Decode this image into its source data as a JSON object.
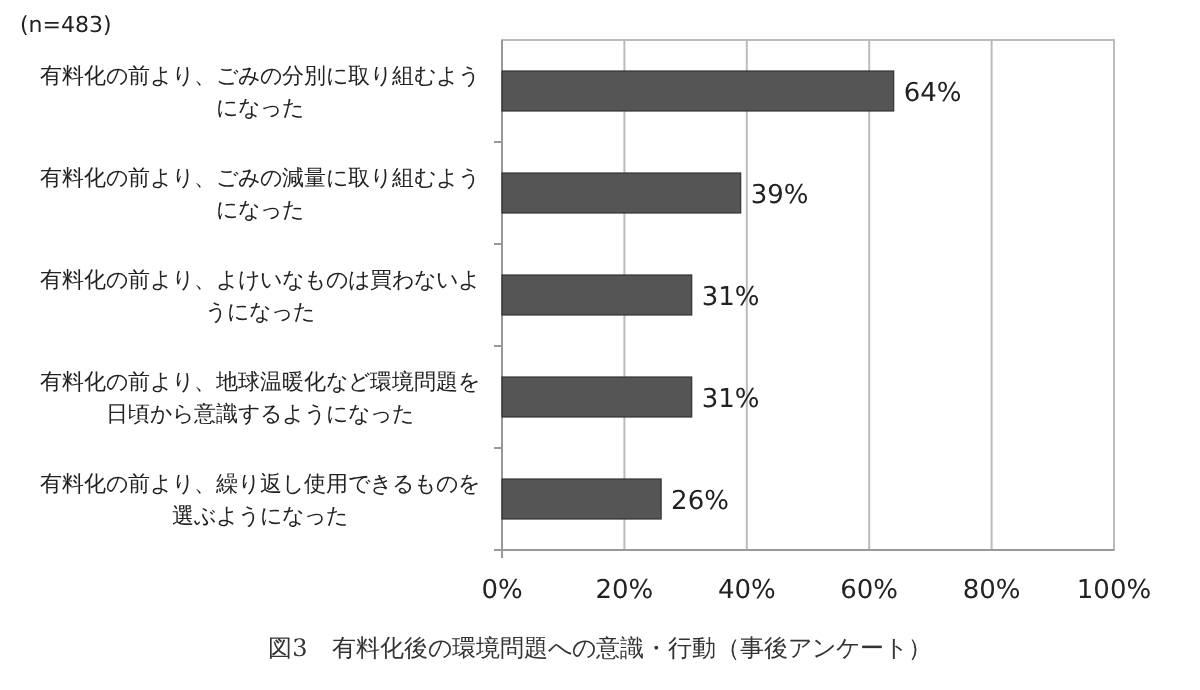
{
  "chart_data": {
    "type": "bar",
    "orientation": "horizontal",
    "title": "図3　有料化後の環境問題への意識・行動（事後アンケート）",
    "annotations": [
      "(n=483)"
    ],
    "categories": [
      "有料化の前より、ごみの分別に取り組むようになった",
      "有料化の前より、ごみの減量に取り組むようになった",
      "有料化の前より、よけいなものは買わないようになった",
      "有料化の前より、地球温暖化など環境問題を日頃から意識するようになった",
      "有料化の前より、繰り返し使用できるものを選ぶようになった"
    ],
    "values": [
      64,
      39,
      31,
      31,
      26
    ],
    "value_labels": [
      "64%",
      "39%",
      "31%",
      "31%",
      "26%"
    ],
    "color": "#555555",
    "xlim": [
      0,
      100
    ],
    "xticks": [
      {
        "value": 0,
        "label": "0%"
      },
      {
        "value": 20,
        "label": "20%"
      },
      {
        "value": 40,
        "label": "40%"
      },
      {
        "value": 60,
        "label": "60%"
      },
      {
        "value": 80,
        "label": "80%"
      },
      {
        "value": 100,
        "label": "100%"
      }
    ],
    "grid": "x"
  }
}
